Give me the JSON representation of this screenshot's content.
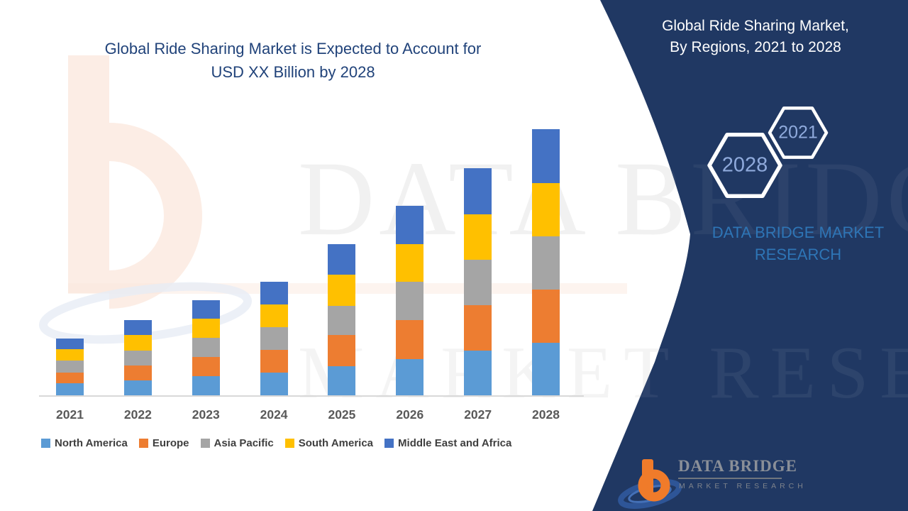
{
  "header": {
    "left_title_line1": "Global Ride Sharing Market is Expected to Account for",
    "left_title_line2": "USD XX Billion by 2028",
    "panel_title_line1": "Global Ride Sharing Market,",
    "panel_title_line2": "By Regions, 2021 to 2028"
  },
  "panel": {
    "background_color": "#203863",
    "hexagon_small_label": "2021",
    "hexagon_large_label": "2028",
    "hexagon_text_color": "#8FAADC",
    "brand_line1": "DATA BRIDGE MARKET",
    "brand_line2": "RESEARCH",
    "brand_text_color": "#2E75B6"
  },
  "logo": {
    "name_text": "DATA BRIDGE",
    "subtext": "MARKET RESEARCH"
  },
  "watermark": {
    "line1": "DATA BRIDGE",
    "line2": "MARKET RESEARCH"
  },
  "chart_data": {
    "type": "bar",
    "stacked": true,
    "title": "Global Ride Sharing Market is Expected to Account for USD XX Billion by 2028",
    "subtitle_right": "Global Ride Sharing Market, By Regions, 2021 to 2028",
    "categories": [
      "2021",
      "2022",
      "2023",
      "2024",
      "2025",
      "2026",
      "2027",
      "2028"
    ],
    "series": [
      {
        "name": "North America",
        "color": "#5B9BD5",
        "values": [
          17,
          21,
          27,
          32,
          41,
          51,
          63,
          74
        ]
      },
      {
        "name": "Europe",
        "color": "#ED7D31",
        "values": [
          15,
          21,
          27,
          32,
          44,
          55,
          64,
          75
        ]
      },
      {
        "name": "Asia Pacific",
        "color": "#A5A5A5",
        "values": [
          17,
          21,
          27,
          32,
          41,
          54,
          64,
          75
        ]
      },
      {
        "name": "South America",
        "color": "#FFC000",
        "values": [
          16,
          22,
          27,
          32,
          44,
          53,
          64,
          75
        ]
      },
      {
        "name": "Middle East and Africa",
        "color": "#4472C4",
        "values": [
          15,
          21,
          26,
          32,
          43,
          54,
          65,
          76
        ]
      }
    ],
    "totals": [
      80,
      106,
      134,
      160,
      213,
      267,
      320,
      375
    ],
    "value_axis": "no numeric axis shown; values undisclosed ('USD XX Billion') - series values are pixel-derived relative units",
    "xlabel": "",
    "ylabel": "",
    "grid": false,
    "legend_position": "bottom"
  }
}
